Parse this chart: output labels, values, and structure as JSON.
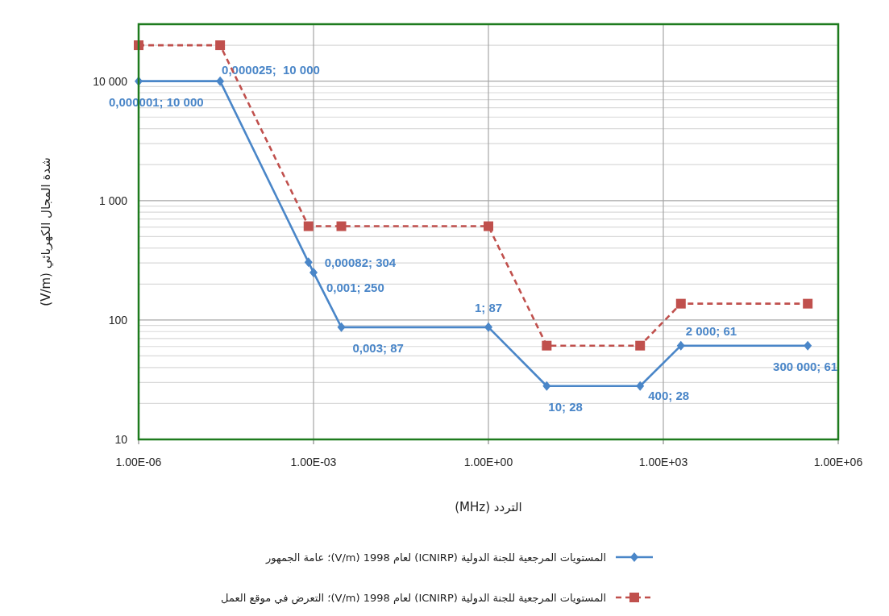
{
  "chart_data": {
    "type": "line",
    "xlabel": "التردد (MHz)",
    "ylabel": "شدة المجال الكهربائي (V/m)",
    "log": "xy",
    "xlim": [
      1e-06,
      1000000
    ],
    "xticks": [
      {
        "value": 1e-06,
        "label": "1.00E-06"
      },
      {
        "value": 0.001,
        "label": "1.00E-03"
      },
      {
        "value": 1,
        "label": "1.00E+00"
      },
      {
        "value": 1000,
        "label": "1.00E+03"
      },
      {
        "value": 1000000,
        "label": "1.00E+06"
      }
    ],
    "ylim": [
      10,
      30000
    ],
    "yticks": [
      10,
      100,
      {
        "value": 1000,
        "label": "1 000"
      },
      {
        "value": 10000,
        "label": "10 000"
      }
    ],
    "grid": true,
    "legend": "bottom",
    "series": [
      {
        "name": "المستويات المرجعية للجنة الدولية (ICNIRP) لعام 1998 (V/m)؛ عامة الجمهور",
        "color": "#4a86c8",
        "marker": "diamond",
        "line_style": "solid",
        "x": [
          1e-06,
          2.5e-05,
          0.00082,
          0.001,
          0.003,
          1,
          10,
          400,
          2000,
          300000
        ],
        "values": [
          10000,
          10000,
          304,
          250,
          87,
          87,
          28,
          28,
          61,
          61
        ],
        "value_labels": [
          "0,000001; 10 000",
          "0,000025;  10 000",
          "0,00082; 304",
          "0,001; 250",
          "0,003; 87",
          "1; 87",
          "10; 28",
          "400; 28",
          "2 000; 61",
          "300 000; 61"
        ]
      },
      {
        "name": "المستويات المرجعية للجنة الدولية (ICNIRP) لعام 1998 (V/m)؛ التعرض في موقع العمل",
        "color": "#c0504d",
        "marker": "square",
        "line_style": "dashed",
        "x": [
          1e-06,
          2.5e-05,
          0.00082,
          0.003,
          1,
          10,
          400,
          2000,
          300000
        ],
        "values": [
          20000,
          20000,
          610,
          610,
          610,
          61,
          61,
          137,
          137
        ]
      }
    ]
  }
}
